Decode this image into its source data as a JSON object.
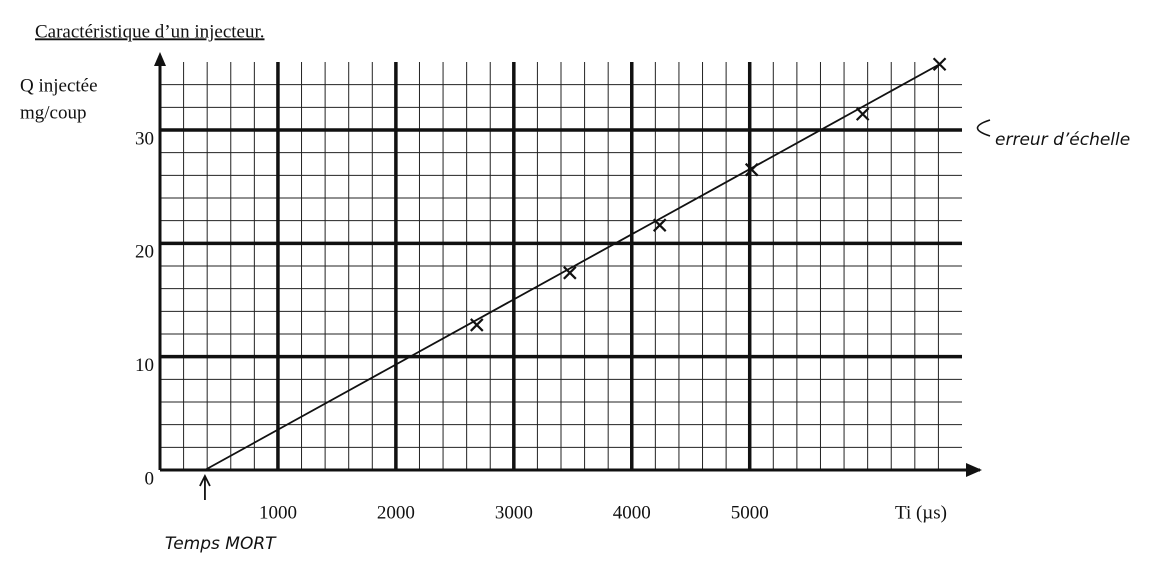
{
  "chart_data": {
    "type": "scatter",
    "title": "Caractéristique d’un injecteur.",
    "ylabel": [
      "Q injectée",
      "mg/coup"
    ],
    "xlabel": "Ti (µs)",
    "x": [
      2686,
      3475,
      4237,
      5017,
      5958,
      6610
    ],
    "y": [
      12.8,
      17.4,
      21.6,
      26.5,
      31.4,
      35.8
    ],
    "fit": {
      "x": [
        381,
        6610
      ],
      "y": [
        0,
        35.8
      ]
    },
    "xlim": [
      0,
      6800
    ],
    "ylim": [
      0,
      36
    ],
    "xticks": [
      1000,
      2000,
      3000,
      4000,
      5000
    ],
    "yticks": [
      0,
      10,
      20,
      30
    ],
    "grid": true,
    "color": "#111111",
    "annotations": [
      {
        "text": "Temps MORT",
        "x": 381
      },
      {
        "text": "erreur d’échelle",
        "y": 30
      }
    ]
  }
}
